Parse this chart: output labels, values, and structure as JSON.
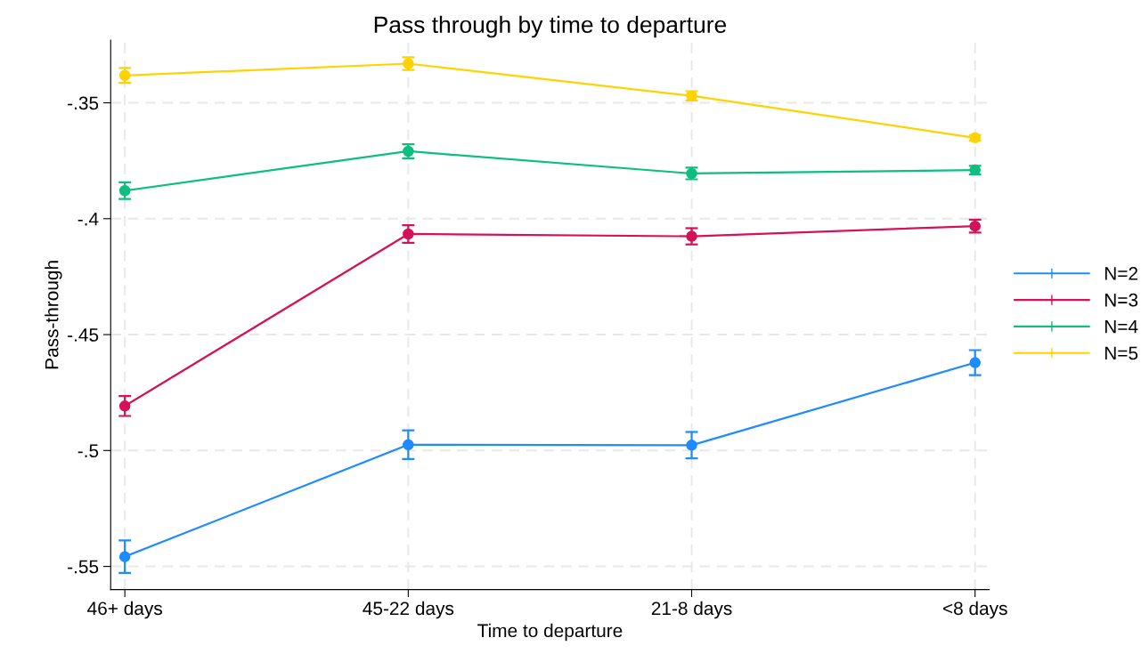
{
  "chart_data": {
    "type": "line",
    "title": "Pass through by time to departure",
    "xlabel": "Time to departure",
    "ylabel": "Pass-through",
    "categories": [
      "46+ days",
      "45-22 days",
      "21-8 days",
      "<8 days"
    ],
    "series": [
      {
        "name": "N=2",
        "color": "#1e8bff",
        "values": [
          -0.5458,
          -0.4975,
          -0.4977,
          -0.4621
        ],
        "errors": [
          0.007,
          0.0062,
          0.0057,
          0.0054
        ]
      },
      {
        "name": "N=3",
        "color": "#d5115a",
        "values": [
          -0.4808,
          -0.4066,
          -0.4076,
          -0.4032
        ],
        "errors": [
          0.0043,
          0.0038,
          0.0035,
          0.0028
        ]
      },
      {
        "name": "N=4",
        "color": "#0cbf7f",
        "values": [
          -0.3879,
          -0.3709,
          -0.3805,
          -0.379
        ],
        "errors": [
          0.0036,
          0.003,
          0.0025,
          0.0018
        ]
      },
      {
        "name": "N=5",
        "color": "#ffd200",
        "values": [
          -0.3382,
          -0.3331,
          -0.347,
          -0.3651
        ],
        "errors": [
          0.0032,
          0.0027,
          0.002,
          0.0012
        ]
      }
    ],
    "ylim": [
      -0.56,
      -0.323
    ],
    "yticks": [
      {
        "value": -0.55,
        "label": "-.55"
      },
      {
        "value": -0.5,
        "label": "-.5"
      },
      {
        "value": -0.45,
        "label": "-.45"
      },
      {
        "value": -0.4,
        "label": "-.4"
      },
      {
        "value": -0.35,
        "label": "-.35"
      }
    ],
    "grid": true,
    "legend": "right",
    "marker": "circle",
    "line_style": "solid"
  }
}
